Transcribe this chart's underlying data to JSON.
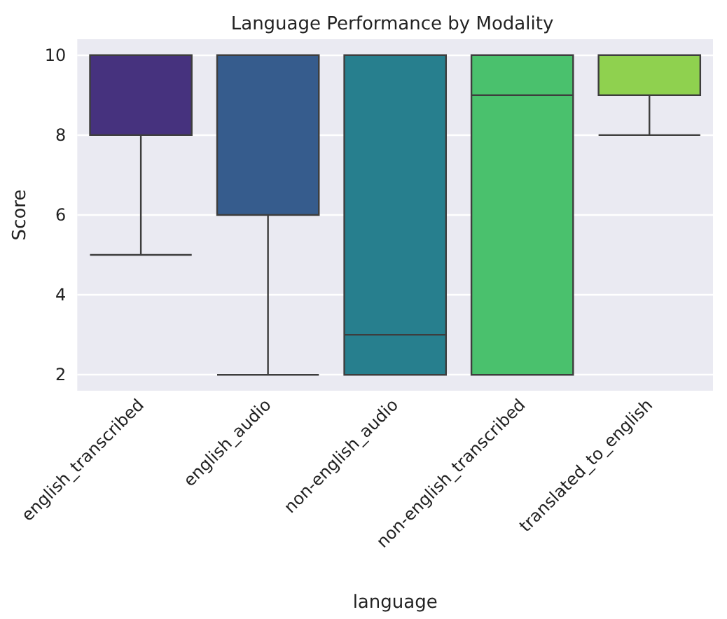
{
  "chart_data": {
    "type": "box",
    "title": "Language Performance by Modality",
    "xlabel": "language",
    "ylabel": "Score",
    "categories": [
      "english_transcribed",
      "english_audio",
      "non-english_audio",
      "non-english_transcribed",
      "translated_to_english"
    ],
    "colors": [
      "#46327e",
      "#365c8d",
      "#277f8e",
      "#4ac16d",
      "#8fd14f"
    ],
    "boxes": [
      {
        "low": 5,
        "q1": 8,
        "median": 10,
        "q3": 10,
        "high": 10
      },
      {
        "low": 2,
        "q1": 6,
        "median": 10,
        "q3": 10,
        "high": 10
      },
      {
        "low": 2,
        "q1": 2,
        "median": 3,
        "q3": 10,
        "high": 10
      },
      {
        "low": 2,
        "q1": 2,
        "median": 9,
        "q3": 10,
        "high": 10
      },
      {
        "low": 8,
        "q1": 9,
        "median": 10,
        "q3": 10,
        "high": 10
      }
    ],
    "ylim": [
      1.6,
      10.4
    ],
    "yticks": [
      2,
      4,
      6,
      8,
      10
    ],
    "grid": "y"
  }
}
